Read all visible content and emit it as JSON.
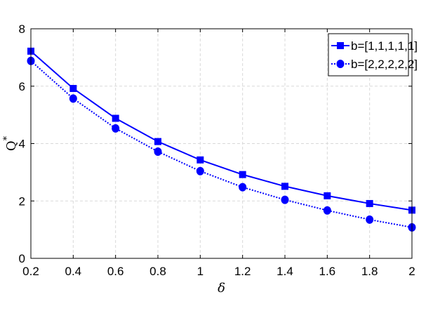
{
  "chart_data": {
    "type": "line",
    "xlabel": "δ",
    "ylabel": "Q",
    "ylabel_superscript": "*",
    "xlim": [
      0.2,
      2
    ],
    "ylim": [
      0,
      8
    ],
    "xticks": [
      "0.2",
      "0.4",
      "0.6",
      "0.8",
      "1",
      "1.2",
      "1.4",
      "1.6",
      "1.8",
      "2"
    ],
    "yticks": [
      "0",
      "2",
      "4",
      "6",
      "8"
    ],
    "grid": true,
    "legend_position": "top-right",
    "x": [
      0.2,
      0.4,
      0.6,
      0.8,
      1.0,
      1.2,
      1.4,
      1.6,
      1.8,
      2.0
    ],
    "series": [
      {
        "name": "b=[1,1,1,1,1]",
        "values": [
          7.22,
          5.92,
          4.88,
          4.07,
          3.43,
          2.92,
          2.51,
          2.18,
          1.91,
          1.68
        ],
        "color": "#0000ff",
        "line_style": "solid",
        "marker": "square"
      },
      {
        "name": "b=[2,2,2,2,2]",
        "values": [
          6.88,
          5.57,
          4.53,
          3.72,
          3.04,
          2.48,
          2.04,
          1.67,
          1.35,
          1.08
        ],
        "color": "#0000ff",
        "line_style": "dotted",
        "marker": "circle"
      }
    ]
  }
}
